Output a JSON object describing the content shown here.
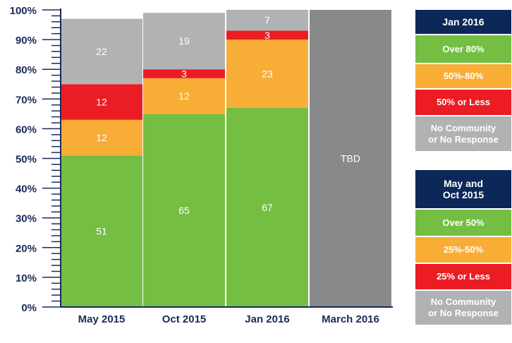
{
  "chart_data": {
    "type": "bar",
    "stacked": true,
    "categories": [
      "May 2015",
      "Oct 2015",
      "Jan 2016",
      "March 2016"
    ],
    "ylim": [
      0,
      100
    ],
    "ytick_labels": [
      "0%",
      "10%",
      "20%",
      "30%",
      "40%",
      "50%",
      "60%",
      "70%",
      "80%",
      "90%",
      "100%"
    ],
    "series": [
      {
        "key": "green",
        "color": "#74be43",
        "values": [
          51,
          65,
          67,
          null
        ],
        "labels": [
          "51",
          "65",
          "67",
          ""
        ]
      },
      {
        "key": "orange",
        "color": "#f8ad36",
        "values": [
          12,
          12,
          23,
          null
        ],
        "labels": [
          "12",
          "12",
          "23",
          ""
        ]
      },
      {
        "key": "red",
        "color": "#ec1c24",
        "values": [
          12,
          3,
          3,
          null
        ],
        "labels": [
          "12",
          "3",
          "3",
          ""
        ]
      },
      {
        "key": "gray",
        "color": "#b1b2b4",
        "values": [
          22,
          19,
          7,
          null
        ],
        "labels": [
          "22",
          "19",
          "7",
          ""
        ]
      }
    ],
    "tbd": {
      "category": "March 2016",
      "label": "TBD",
      "color": "#87898b",
      "value": 100
    },
    "legends": [
      {
        "title": "Jan 2016",
        "items": [
          {
            "label": "Over 80%",
            "color": "#74be43"
          },
          {
            "label": "50%-80%",
            "color": "#f8ad36"
          },
          {
            "label": "50% or Less",
            "color": "#ec1c24"
          },
          {
            "label": "No Community\nor No Response",
            "color": "#b1b2b4"
          }
        ]
      },
      {
        "title": "May and\nOct 2015",
        "items": [
          {
            "label": "Over 50%",
            "color": "#74be43"
          },
          {
            "label": "25%-50%",
            "color": "#f8ad36"
          },
          {
            "label": "25% or Less",
            "color": "#ec1c24"
          },
          {
            "label": "No Community\nor No Response",
            "color": "#b1b2b4"
          }
        ]
      }
    ],
    "colors": {
      "axis": "#1b2a5a",
      "legend_title_bg": "#0d2759"
    }
  }
}
